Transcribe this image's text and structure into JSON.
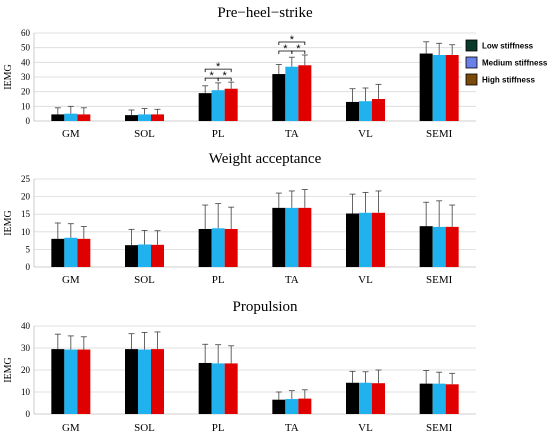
{
  "legend": [
    {
      "label": "Low stiffness",
      "color": "#0a3a2a"
    },
    {
      "label": "Medium stiffness",
      "color": "#6b7fe8"
    },
    {
      "label": "High stiffness",
      "color": "#7a4a0a"
    }
  ],
  "chart_data": [
    {
      "type": "bar",
      "title": "Pre−heel−strike",
      "ylabel": "IEMG",
      "ylim": [
        0,
        60
      ],
      "yticks": [
        0,
        10,
        20,
        30,
        40,
        50,
        60
      ],
      "categories": [
        "GM",
        "SOL",
        "PL",
        "TA",
        "VL",
        "SEMI"
      ],
      "bar_colors": [
        "#000000",
        "#1fb2ee",
        "#e00000"
      ],
      "series": [
        {
          "name": "Low stiffness",
          "values": [
            4.5,
            4,
            19,
            32,
            13,
            46
          ],
          "errors": [
            4.5,
            3.5,
            5,
            6.5,
            9,
            8
          ]
        },
        {
          "name": "Medium stiffness",
          "values": [
            5,
            4.5,
            21,
            37,
            13.5,
            45
          ],
          "errors": [
            5,
            4,
            5,
            6.5,
            9,
            8
          ]
        },
        {
          "name": "High stiffness",
          "values": [
            4.5,
            4.5,
            22,
            38,
            15,
            45
          ],
          "errors": [
            4.5,
            3.5,
            4.5,
            7,
            10,
            7
          ]
        }
      ],
      "significance": [
        {
          "category": "PL",
          "pairs": [
            [
              0,
              1
            ],
            [
              1,
              2
            ],
            [
              0,
              2
            ]
          ],
          "marker": "*"
        },
        {
          "category": "TA",
          "pairs": [
            [
              0,
              1
            ],
            [
              1,
              2
            ],
            [
              0,
              2
            ]
          ],
          "marker": "*"
        }
      ]
    },
    {
      "type": "bar",
      "title": "Weight acceptance",
      "ylabel": "IEMG",
      "ylim": [
        0,
        25
      ],
      "yticks": [
        0,
        5,
        10,
        15,
        20,
        25
      ],
      "categories": [
        "GM",
        "SOL",
        "PL",
        "TA",
        "VL",
        "SEMI"
      ],
      "bar_colors": [
        "#000000",
        "#1fb2ee",
        "#e00000"
      ],
      "series": [
        {
          "name": "Low stiffness",
          "values": [
            8,
            6.2,
            10.8,
            16.8,
            15.2,
            11.6
          ],
          "errors": [
            4.5,
            4.5,
            6.8,
            4.2,
            5.5,
            6.8
          ]
        },
        {
          "name": "Medium stiffness",
          "values": [
            8.3,
            6.4,
            11,
            16.8,
            15.4,
            11.4
          ],
          "errors": [
            4,
            4,
            7,
            4.8,
            5.8,
            7.4
          ]
        },
        {
          "name": "High stiffness",
          "values": [
            8,
            6.3,
            10.8,
            16.8,
            15.4,
            11.4
          ],
          "errors": [
            3.5,
            4,
            6.2,
            5.2,
            6.2,
            6.2
          ]
        }
      ],
      "significance": []
    },
    {
      "type": "bar",
      "title": "Propulsion",
      "ylabel": "IEMG",
      "ylim": [
        0,
        40
      ],
      "yticks": [
        0,
        10,
        20,
        30,
        40
      ],
      "categories": [
        "GM",
        "SOL",
        "PL",
        "TA",
        "VL",
        "SEMI"
      ],
      "bar_colors": [
        "#000000",
        "#1fb2ee",
        "#e00000"
      ],
      "series": [
        {
          "name": "Low stiffness",
          "values": [
            29.5,
            29.5,
            23.2,
            6.5,
            14.2,
            13.8
          ],
          "errors": [
            6.8,
            7,
            8.5,
            3.5,
            5.2,
            6
          ]
        },
        {
          "name": "Medium stiffness",
          "values": [
            29.3,
            29.3,
            23,
            6.8,
            14.2,
            13.8
          ],
          "errors": [
            6.2,
            7.8,
            8.5,
            3.8,
            5,
            5.2
          ]
        },
        {
          "name": "High stiffness",
          "values": [
            29.3,
            29.5,
            23,
            7,
            14,
            13.5
          ],
          "errors": [
            5.8,
            7.8,
            8,
            4,
            6,
            5
          ]
        }
      ],
      "significance": []
    }
  ]
}
